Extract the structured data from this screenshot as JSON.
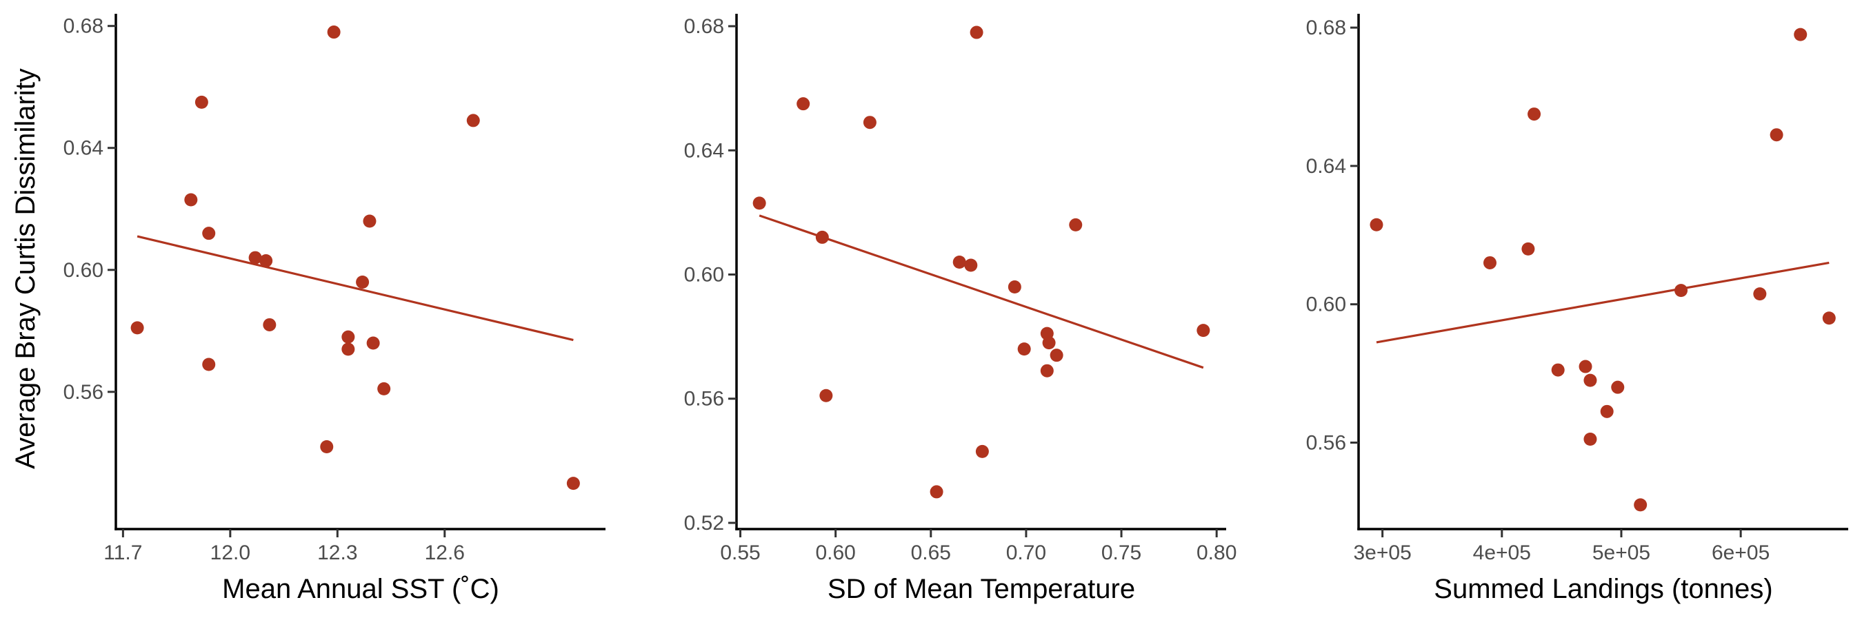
{
  "colors": {
    "point": "#B0341E",
    "line": "#B0341E",
    "axis": "#000000",
    "tick_label": "#4D4D4D"
  },
  "y_axis_title": "Average Bray Curtis Dissimilarity",
  "chart_data": [
    {
      "type": "scatter",
      "xlabel": "Mean Annual SST (˚C)",
      "ylabel": "Average Bray Curtis Dissimilarity",
      "xlim": [
        11.68,
        13.05
      ],
      "ylim": [
        0.515,
        0.684
      ],
      "x_ticks": [
        11.7,
        12.0,
        12.3,
        12.6
      ],
      "x_tick_labels": [
        "11.7",
        "12.0",
        "12.3",
        "12.6"
      ],
      "y_ticks": [
        0.56,
        0.6,
        0.64,
        0.68
      ],
      "y_tick_labels": [
        "0.56",
        "0.60",
        "0.64",
        "0.68"
      ],
      "points": [
        {
          "x": 11.74,
          "y": 0.581
        },
        {
          "x": 11.89,
          "y": 0.623
        },
        {
          "x": 11.92,
          "y": 0.655
        },
        {
          "x": 11.94,
          "y": 0.612
        },
        {
          "x": 11.94,
          "y": 0.569
        },
        {
          "x": 12.07,
          "y": 0.604
        },
        {
          "x": 12.1,
          "y": 0.603
        },
        {
          "x": 12.11,
          "y": 0.582
        },
        {
          "x": 12.27,
          "y": 0.542
        },
        {
          "x": 12.29,
          "y": 0.678
        },
        {
          "x": 12.33,
          "y": 0.578
        },
        {
          "x": 12.33,
          "y": 0.574
        },
        {
          "x": 12.37,
          "y": 0.596
        },
        {
          "x": 12.39,
          "y": 0.616
        },
        {
          "x": 12.4,
          "y": 0.576
        },
        {
          "x": 12.43,
          "y": 0.561
        },
        {
          "x": 12.68,
          "y": 0.649
        },
        {
          "x": 12.96,
          "y": 0.53
        }
      ],
      "fit_line": [
        {
          "x": 11.74,
          "y": 0.611
        },
        {
          "x": 12.96,
          "y": 0.577
        }
      ]
    },
    {
      "type": "scatter",
      "xlabel": "SD of Mean Temperature",
      "ylabel": "",
      "xlim": [
        0.548,
        0.805
      ],
      "ylim": [
        0.518,
        0.684
      ],
      "x_ticks": [
        0.55,
        0.6,
        0.65,
        0.7,
        0.75,
        0.8
      ],
      "x_tick_labels": [
        "0.55",
        "0.60",
        "0.65",
        "0.70",
        "0.75",
        "0.80"
      ],
      "y_ticks": [
        0.52,
        0.56,
        0.6,
        0.64,
        0.68
      ],
      "y_tick_labels": [
        "0.52",
        "0.56",
        "0.60",
        "0.64",
        "0.68"
      ],
      "points": [
        {
          "x": 0.56,
          "y": 0.623
        },
        {
          "x": 0.583,
          "y": 0.655
        },
        {
          "x": 0.593,
          "y": 0.612
        },
        {
          "x": 0.595,
          "y": 0.561
        },
        {
          "x": 0.618,
          "y": 0.649
        },
        {
          "x": 0.653,
          "y": 0.53
        },
        {
          "x": 0.665,
          "y": 0.604
        },
        {
          "x": 0.671,
          "y": 0.603
        },
        {
          "x": 0.674,
          "y": 0.678
        },
        {
          "x": 0.677,
          "y": 0.543
        },
        {
          "x": 0.694,
          "y": 0.596
        },
        {
          "x": 0.699,
          "y": 0.576
        },
        {
          "x": 0.711,
          "y": 0.581
        },
        {
          "x": 0.712,
          "y": 0.578
        },
        {
          "x": 0.711,
          "y": 0.569
        },
        {
          "x": 0.716,
          "y": 0.574
        },
        {
          "x": 0.726,
          "y": 0.616
        },
        {
          "x": 0.793,
          "y": 0.582
        }
      ],
      "fit_line": [
        {
          "x": 0.56,
          "y": 0.619
        },
        {
          "x": 0.793,
          "y": 0.57
        }
      ]
    },
    {
      "type": "scatter",
      "xlabel": "Summed Landings (tonnes)",
      "ylabel": "",
      "xlim": [
        280000,
        690000
      ],
      "ylim": [
        0.535,
        0.684
      ],
      "x_ticks": [
        300000,
        400000,
        500000,
        600000
      ],
      "x_tick_labels": [
        "3e+05",
        "4e+05",
        "5e+05",
        "6e+05"
      ],
      "y_ticks": [
        0.56,
        0.6,
        0.64,
        0.68
      ],
      "y_tick_labels": [
        "0.56",
        "0.60",
        "0.64",
        "0.68"
      ],
      "points": [
        {
          "x": 295000,
          "y": 0.623
        },
        {
          "x": 390000,
          "y": 0.612
        },
        {
          "x": 422000,
          "y": 0.616
        },
        {
          "x": 427000,
          "y": 0.655
        },
        {
          "x": 447000,
          "y": 0.581
        },
        {
          "x": 470000,
          "y": 0.582
        },
        {
          "x": 474000,
          "y": 0.578
        },
        {
          "x": 474000,
          "y": 0.561
        },
        {
          "x": 488000,
          "y": 0.569
        },
        {
          "x": 497000,
          "y": 0.576
        },
        {
          "x": 516000,
          "y": 0.542
        },
        {
          "x": 550000,
          "y": 0.604
        },
        {
          "x": 616000,
          "y": 0.603
        },
        {
          "x": 630000,
          "y": 0.649
        },
        {
          "x": 650000,
          "y": 0.678
        },
        {
          "x": 674000,
          "y": 0.596
        }
      ],
      "fit_line": [
        {
          "x": 295000,
          "y": 0.589
        },
        {
          "x": 674000,
          "y": 0.612
        }
      ]
    }
  ]
}
